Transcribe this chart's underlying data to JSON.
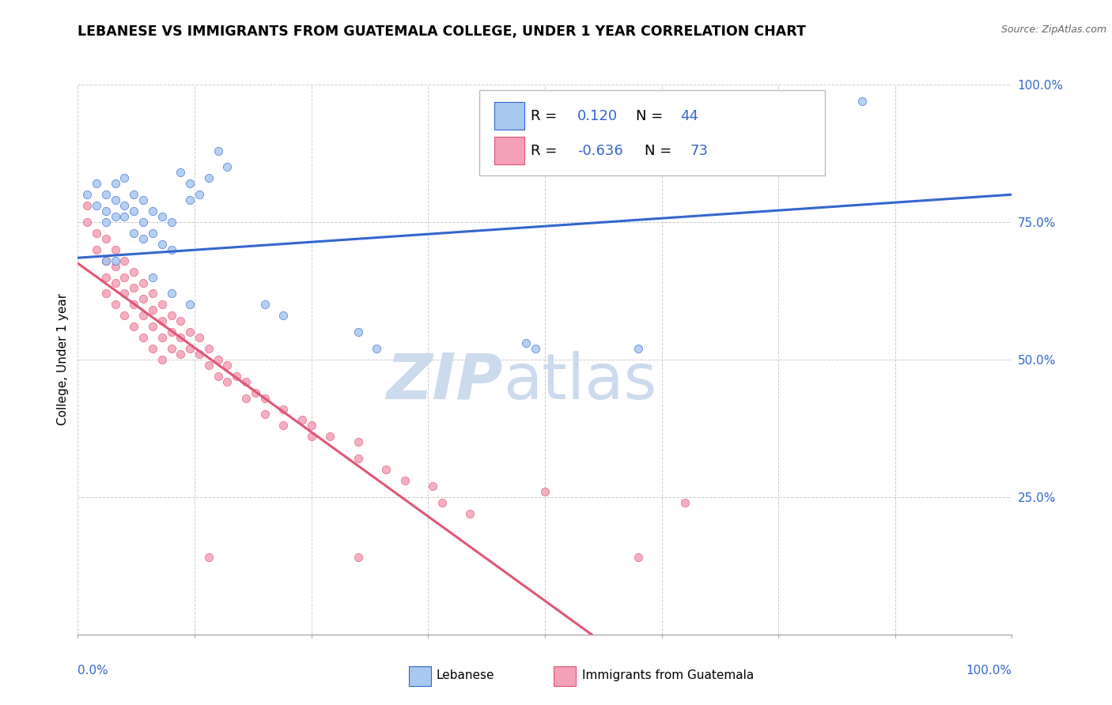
{
  "title": "LEBANESE VS IMMIGRANTS FROM GUATEMALA COLLEGE, UNDER 1 YEAR CORRELATION CHART",
  "source": "Source: ZipAtlas.com",
  "ylabel": "College, Under 1 year",
  "color_blue": "#a8c8f0",
  "color_pink": "#f4a0b8",
  "trendline_blue": "#3366cc",
  "trendline_pink": "#e05575",
  "watermark_zip_color": "#ccdaee",
  "watermark_atlas_color": "#ccdaee",
  "blue_scatter": [
    [
      0.01,
      0.8
    ],
    [
      0.02,
      0.82
    ],
    [
      0.02,
      0.78
    ],
    [
      0.03,
      0.8
    ],
    [
      0.03,
      0.77
    ],
    [
      0.03,
      0.75
    ],
    [
      0.04,
      0.82
    ],
    [
      0.04,
      0.79
    ],
    [
      0.04,
      0.76
    ],
    [
      0.05,
      0.83
    ],
    [
      0.05,
      0.78
    ],
    [
      0.05,
      0.76
    ],
    [
      0.06,
      0.8
    ],
    [
      0.06,
      0.77
    ],
    [
      0.06,
      0.73
    ],
    [
      0.07,
      0.79
    ],
    [
      0.07,
      0.75
    ],
    [
      0.07,
      0.72
    ],
    [
      0.08,
      0.77
    ],
    [
      0.08,
      0.73
    ],
    [
      0.09,
      0.76
    ],
    [
      0.09,
      0.71
    ],
    [
      0.1,
      0.75
    ],
    [
      0.1,
      0.7
    ],
    [
      0.11,
      0.84
    ],
    [
      0.12,
      0.82
    ],
    [
      0.12,
      0.79
    ],
    [
      0.13,
      0.8
    ],
    [
      0.14,
      0.83
    ],
    [
      0.15,
      0.88
    ],
    [
      0.16,
      0.85
    ],
    [
      0.08,
      0.65
    ],
    [
      0.1,
      0.62
    ],
    [
      0.12,
      0.6
    ],
    [
      0.2,
      0.6
    ],
    [
      0.22,
      0.58
    ],
    [
      0.3,
      0.55
    ],
    [
      0.32,
      0.52
    ],
    [
      0.48,
      0.53
    ],
    [
      0.49,
      0.52
    ],
    [
      0.6,
      0.52
    ],
    [
      0.84,
      0.97
    ],
    [
      0.03,
      0.68
    ],
    [
      0.04,
      0.68
    ]
  ],
  "pink_scatter": [
    [
      0.01,
      0.78
    ],
    [
      0.01,
      0.75
    ],
    [
      0.02,
      0.73
    ],
    [
      0.02,
      0.7
    ],
    [
      0.03,
      0.72
    ],
    [
      0.03,
      0.68
    ],
    [
      0.03,
      0.65
    ],
    [
      0.03,
      0.62
    ],
    [
      0.04,
      0.7
    ],
    [
      0.04,
      0.67
    ],
    [
      0.04,
      0.64
    ],
    [
      0.04,
      0.6
    ],
    [
      0.05,
      0.68
    ],
    [
      0.05,
      0.65
    ],
    [
      0.05,
      0.62
    ],
    [
      0.05,
      0.58
    ],
    [
      0.06,
      0.66
    ],
    [
      0.06,
      0.63
    ],
    [
      0.06,
      0.6
    ],
    [
      0.06,
      0.56
    ],
    [
      0.07,
      0.64
    ],
    [
      0.07,
      0.61
    ],
    [
      0.07,
      0.58
    ],
    [
      0.07,
      0.54
    ],
    [
      0.08,
      0.62
    ],
    [
      0.08,
      0.59
    ],
    [
      0.08,
      0.56
    ],
    [
      0.08,
      0.52
    ],
    [
      0.09,
      0.6
    ],
    [
      0.09,
      0.57
    ],
    [
      0.09,
      0.54
    ],
    [
      0.09,
      0.5
    ],
    [
      0.1,
      0.58
    ],
    [
      0.1,
      0.55
    ],
    [
      0.1,
      0.52
    ],
    [
      0.11,
      0.57
    ],
    [
      0.11,
      0.54
    ],
    [
      0.11,
      0.51
    ],
    [
      0.12,
      0.55
    ],
    [
      0.12,
      0.52
    ],
    [
      0.13,
      0.54
    ],
    [
      0.13,
      0.51
    ],
    [
      0.14,
      0.52
    ],
    [
      0.14,
      0.49
    ],
    [
      0.15,
      0.5
    ],
    [
      0.15,
      0.47
    ],
    [
      0.16,
      0.49
    ],
    [
      0.16,
      0.46
    ],
    [
      0.17,
      0.47
    ],
    [
      0.18,
      0.46
    ],
    [
      0.18,
      0.43
    ],
    [
      0.19,
      0.44
    ],
    [
      0.2,
      0.43
    ],
    [
      0.2,
      0.4
    ],
    [
      0.22,
      0.41
    ],
    [
      0.22,
      0.38
    ],
    [
      0.24,
      0.39
    ],
    [
      0.25,
      0.38
    ],
    [
      0.25,
      0.36
    ],
    [
      0.27,
      0.36
    ],
    [
      0.3,
      0.35
    ],
    [
      0.3,
      0.32
    ],
    [
      0.33,
      0.3
    ],
    [
      0.35,
      0.28
    ],
    [
      0.38,
      0.27
    ],
    [
      0.39,
      0.24
    ],
    [
      0.42,
      0.22
    ],
    [
      0.5,
      0.26
    ],
    [
      0.6,
      0.14
    ],
    [
      0.65,
      0.24
    ],
    [
      0.14,
      0.14
    ],
    [
      0.3,
      0.14
    ]
  ],
  "blue_trend_x": [
    0.0,
    1.0
  ],
  "blue_trend_y": [
    0.685,
    0.8
  ],
  "pink_trend_x": [
    0.0,
    0.55
  ],
  "pink_trend_y": [
    0.675,
    0.0
  ],
  "xlim": [
    0.0,
    1.0
  ],
  "ylim": [
    0.0,
    1.0
  ],
  "yticks": [
    0.0,
    0.25,
    0.5,
    0.75,
    1.0
  ],
  "ytick_labels": [
    "",
    "25.0%",
    "50.0%",
    "75.0%",
    "100.0%"
  ],
  "xtick_positions": [
    0.0,
    0.125,
    0.25,
    0.375,
    0.5,
    0.625,
    0.75,
    0.875,
    1.0
  ]
}
